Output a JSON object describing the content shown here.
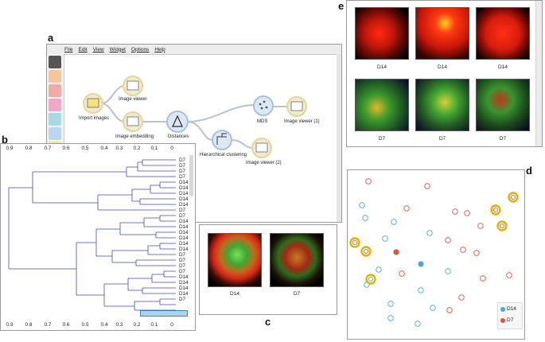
{
  "panel_labels": {
    "a": "a",
    "b": "b",
    "c": "c",
    "d": "d",
    "e": "e"
  },
  "menu": [
    "File",
    "Edit",
    "View",
    "Widget",
    "Options",
    "Help"
  ],
  "workflow_nodes": {
    "import_images": "Import images",
    "image_viewer": "Image viewer",
    "image_embedding": "Image embedding",
    "distances": "Distances",
    "hierarchical_clustering": "Hierarchical clustering",
    "mds": "MDS",
    "image_viewer_1": "Image viewer (1)",
    "image_viewer_2": "Image viewer (2)"
  },
  "dendrogram": {
    "axis_ticks": [
      "0.9",
      "0.8",
      "0.7",
      "0.6",
      "0.5",
      "0.4",
      "0.3",
      "0.2",
      "0.1",
      "0"
    ],
    "leaves": [
      "D7",
      "D7",
      "D7",
      "D7",
      "D14",
      "D14",
      "D14",
      "D14",
      "D14",
      "D7",
      "D7",
      "D14",
      "D14",
      "D14",
      "D14",
      "D14",
      "D14",
      "D7",
      "D7",
      "D7",
      "D7",
      "D14",
      "D14",
      "D14",
      "D14",
      "D7"
    ]
  },
  "selected_images": {
    "items": [
      {
        "label": "D14"
      },
      {
        "label": "D7"
      }
    ]
  },
  "image_grid": {
    "items": [
      {
        "label": "D14"
      },
      {
        "label": "D14"
      },
      {
        "label": "D14"
      },
      {
        "label": "D7"
      },
      {
        "label": "D7"
      },
      {
        "label": "D7"
      }
    ]
  },
  "mds_legend": [
    {
      "label": "D14",
      "color": "#4aa8d8"
    },
    {
      "label": "D7",
      "color": "#d9533f"
    }
  ],
  "colors": {
    "d14": "#4aa8d8",
    "d7": "#d9533f",
    "highlight": "#e0b300",
    "dendro": "#3f4fa8",
    "selection": "#a8d4f0"
  }
}
